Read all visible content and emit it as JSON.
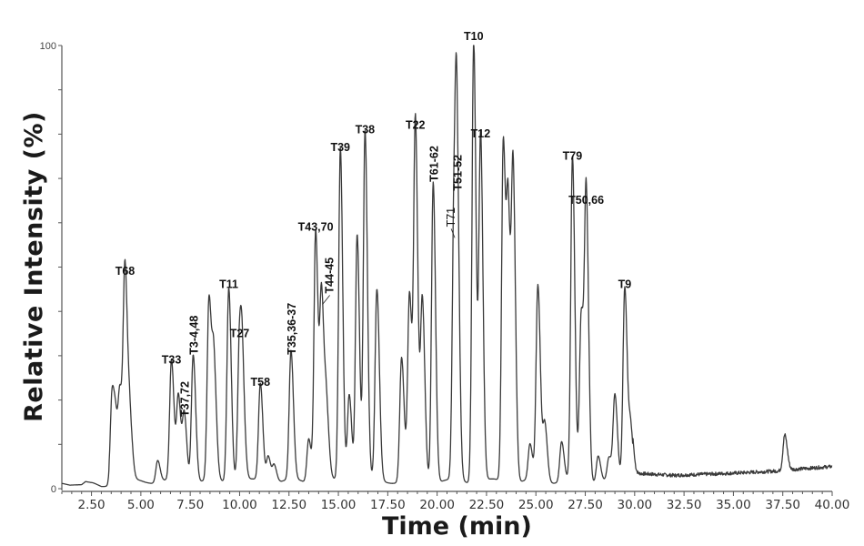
{
  "chart_data": {
    "type": "line",
    "title": "",
    "xlabel": "Time (min)",
    "ylabel": "Relative Intensity (%)",
    "xlim": [
      1.0,
      40.0
    ],
    "ylim": [
      0,
      100
    ],
    "grid": false,
    "legend": null,
    "x_ticks": [
      "2.50",
      "5.00",
      "7.50",
      "10.00",
      "12.50",
      "15.00",
      "17.50",
      "20.00",
      "22.50",
      "25.00",
      "27.50",
      "30.00",
      "32.50",
      "35.00",
      "37.50",
      "40.00"
    ],
    "y_ticks": [
      "0",
      "100"
    ],
    "baseline": [
      {
        "x": 1.0,
        "y": 1.2
      },
      {
        "x": 1.4,
        "y": 0.8
      },
      {
        "x": 2.0,
        "y": 0.9
      },
      {
        "x": 2.2,
        "y": 1.6
      },
      {
        "x": 2.6,
        "y": 1.3
      },
      {
        "x": 3.0,
        "y": 0.5
      },
      {
        "x": 3.4,
        "y": 0.5
      },
      {
        "x": 29.9,
        "y": 3.5
      },
      {
        "x": 32.0,
        "y": 3.0
      },
      {
        "x": 35.0,
        "y": 3.5
      },
      {
        "x": 37.3,
        "y": 4.0
      },
      {
        "x": 37.9,
        "y": 4.3
      },
      {
        "x": 40.0,
        "y": 5.0
      }
    ],
    "peaks": [
      {
        "label": "",
        "time": 3.55,
        "height": 21
      },
      {
        "label": "",
        "time": 3.75,
        "height": 10
      },
      {
        "label": "",
        "time": 3.95,
        "height": 18
      },
      {
        "label": "T68",
        "time": 4.2,
        "height": 47
      },
      {
        "label": "",
        "time": 4.45,
        "height": 12
      },
      {
        "label": "",
        "time": 5.85,
        "height": 5
      },
      {
        "label": "T33",
        "time": 6.55,
        "height": 27
      },
      {
        "label": "",
        "time": 6.9,
        "height": 19
      },
      {
        "label": "T37,72",
        "time": 7.2,
        "height": 15
      },
      {
        "label": "T3-4,48",
        "time": 7.65,
        "height": 29
      },
      {
        "label": "",
        "time": 8.45,
        "height": 41
      },
      {
        "label": "",
        "time": 8.7,
        "height": 25
      },
      {
        "label": "T11",
        "time": 9.45,
        "height": 44
      },
      {
        "label": "T27",
        "time": 10.0,
        "height": 33
      },
      {
        "label": "",
        "time": 10.15,
        "height": 17
      },
      {
        "label": "T58",
        "time": 11.05,
        "height": 22
      },
      {
        "label": "",
        "time": 11.45,
        "height": 6
      },
      {
        "label": "",
        "time": 11.75,
        "height": 4
      },
      {
        "label": "T35,36-37",
        "time": 12.6,
        "height": 29
      },
      {
        "label": "",
        "time": 13.5,
        "height": 10
      },
      {
        "label": "T43,70",
        "time": 13.85,
        "height": 57
      },
      {
        "label": "T44-45",
        "time": 14.15,
        "height": 42
      },
      {
        "label": "",
        "time": 14.4,
        "height": 15
      },
      {
        "label": "T39",
        "time": 15.1,
        "height": 75
      },
      {
        "label": "",
        "time": 15.55,
        "height": 20
      },
      {
        "label": "",
        "time": 15.95,
        "height": 56
      },
      {
        "label": "T38",
        "time": 16.35,
        "height": 79
      },
      {
        "label": "",
        "time": 16.95,
        "height": 43
      },
      {
        "label": "",
        "time": 18.2,
        "height": 28
      },
      {
        "label": "",
        "time": 18.6,
        "height": 42
      },
      {
        "label": "T22",
        "time": 18.9,
        "height": 80
      },
      {
        "label": "",
        "time": 19.25,
        "height": 41
      },
      {
        "label": "T61-62",
        "time": 19.8,
        "height": 68
      },
      {
        "label": "T71",
        "time": 20.85,
        "height": 57
      },
      {
        "label": "T51-52",
        "time": 21.0,
        "height": 66
      },
      {
        "label": "T10",
        "time": 21.85,
        "height": 100
      },
      {
        "label": "T12",
        "time": 22.2,
        "height": 78
      },
      {
        "label": "",
        "time": 23.35,
        "height": 77
      },
      {
        "label": "",
        "time": 23.6,
        "height": 58
      },
      {
        "label": "",
        "time": 23.85,
        "height": 68
      },
      {
        "label": "",
        "time": 24.7,
        "height": 8
      },
      {
        "label": "",
        "time": 25.1,
        "height": 44
      },
      {
        "label": "",
        "time": 25.45,
        "height": 13
      },
      {
        "label": "",
        "time": 26.3,
        "height": 9
      },
      {
        "label": "T79",
        "time": 26.85,
        "height": 73
      },
      {
        "label": "",
        "time": 27.3,
        "height": 38
      },
      {
        "label": "T50,66",
        "time": 27.55,
        "height": 63
      },
      {
        "label": "",
        "time": 28.15,
        "height": 6
      },
      {
        "label": "",
        "time": 28.7,
        "height": 5
      },
      {
        "label": "",
        "time": 29.0,
        "height": 19
      },
      {
        "label": "T9",
        "time": 29.5,
        "height": 44
      },
      {
        "label": "",
        "time": 29.8,
        "height": 12
      },
      {
        "label": "",
        "time": 37.6,
        "height": 8
      }
    ]
  }
}
